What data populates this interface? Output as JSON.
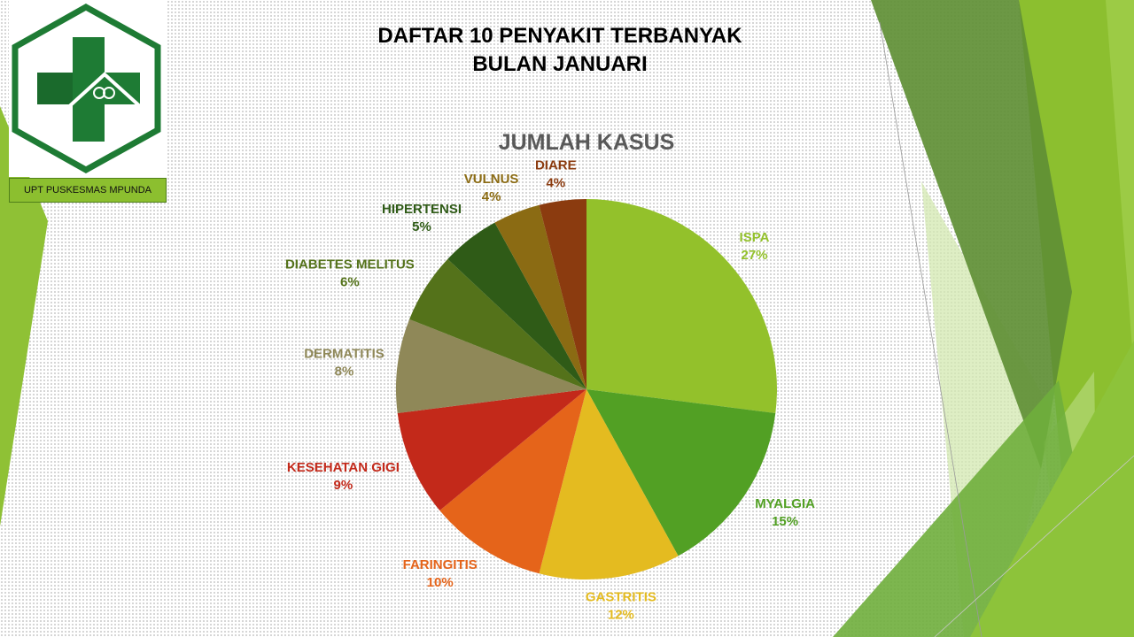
{
  "slide": {
    "title_line1": "DAFTAR 10 PENYAKIT TERBANYAK",
    "title_line2": "BULAN JANUARI"
  },
  "logo": {
    "icon": "puskesmas-cross-house-logo",
    "label": "UPT PUSKESMAS MPUNDA"
  },
  "theme": {
    "accent": "#8cbf2f",
    "logo_green": "#1e7b34",
    "chart_title": "#595959",
    "title": "#000000"
  },
  "chart_data": {
    "type": "pie",
    "title": "JUMLAH KASUS",
    "categories": [
      "ISPA",
      "MYALGIA",
      "GASTRITIS",
      "FARINGITIS",
      "KESEHATAN GIGI",
      "DERMATITIS",
      "DIABETES MELITUS",
      "HIPERTENSI",
      "VULNUS",
      "DIARE"
    ],
    "values": [
      27,
      15,
      12,
      10,
      9,
      8,
      6,
      5,
      4,
      4
    ],
    "value_unit": "%",
    "colors": [
      "#93c12b",
      "#52a024",
      "#e4bb20",
      "#e5641a",
      "#c3291a",
      "#8f8858",
      "#54721a",
      "#2f5b17",
      "#8b6b13",
      "#8b3b0f"
    ]
  }
}
